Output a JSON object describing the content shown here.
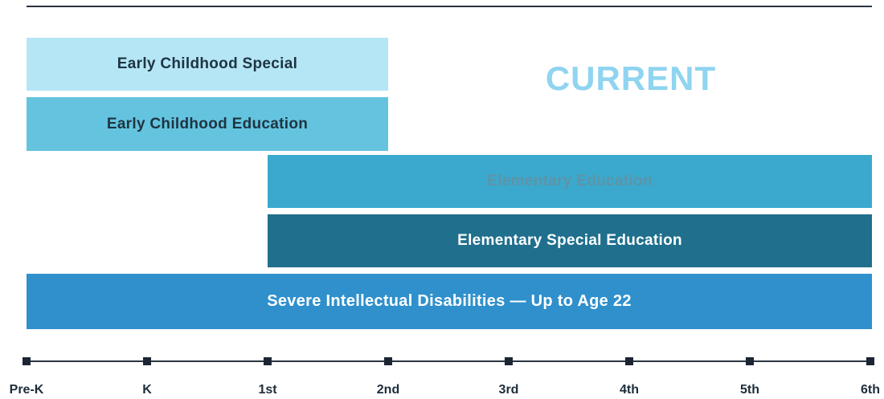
{
  "heading": "CURRENT",
  "programs": [
    {
      "label": "Early Childhood Special"
    },
    {
      "label": "Early Childhood Education"
    },
    {
      "label": "Elementary Education"
    },
    {
      "label": "Elementary Special Education"
    },
    {
      "label": "Severe Intellectual Disabilities — Up to Age 22"
    }
  ],
  "grades": [
    "Pre-K",
    "K",
    "1st",
    "2nd",
    "3rd",
    "4th",
    "5th",
    "6th"
  ]
}
